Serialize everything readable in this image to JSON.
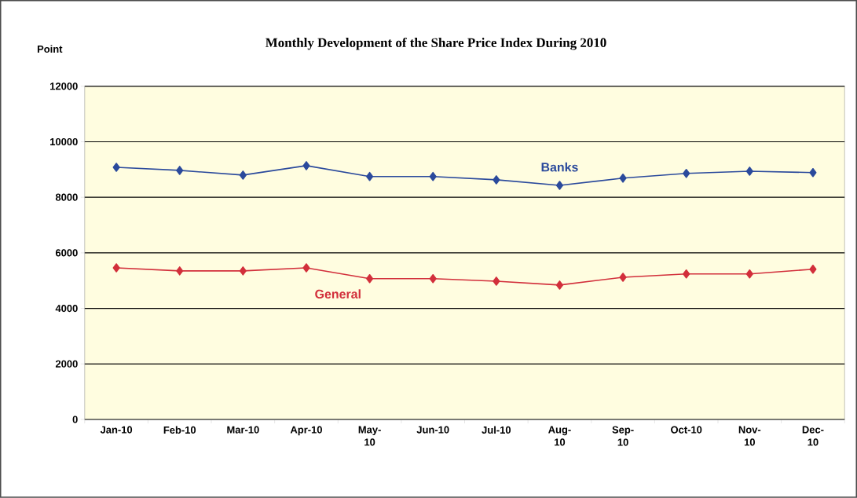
{
  "chart_data": {
    "type": "line",
    "title": "Monthly Development of the Share Price Index During 2010",
    "ylabel": "Point",
    "categories": [
      "Jan-10",
      "Feb-10",
      "Mar-10",
      "Apr-10",
      "May-10",
      "Jun-10",
      "Jul-10",
      "Aug-10",
      "Sep-10",
      "Oct-10",
      "Nov-10",
      "Dec-10"
    ],
    "series": [
      {
        "name": "Banks",
        "color": "#2b4a9c",
        "values": [
          9080,
          8970,
          8800,
          9140,
          8750,
          8750,
          8630,
          8430,
          8690,
          8860,
          8940,
          8890
        ]
      },
      {
        "name": "General",
        "color": "#d22f3b",
        "values": [
          5460,
          5350,
          5350,
          5460,
          5070,
          5070,
          4980,
          4840,
          5120,
          5240,
          5240,
          5410
        ]
      }
    ],
    "ylim": [
      0,
      12000
    ],
    "yticks": [
      0,
      2000,
      4000,
      6000,
      8000,
      10000,
      12000
    ],
    "grid": "y",
    "marker": "diamond"
  }
}
